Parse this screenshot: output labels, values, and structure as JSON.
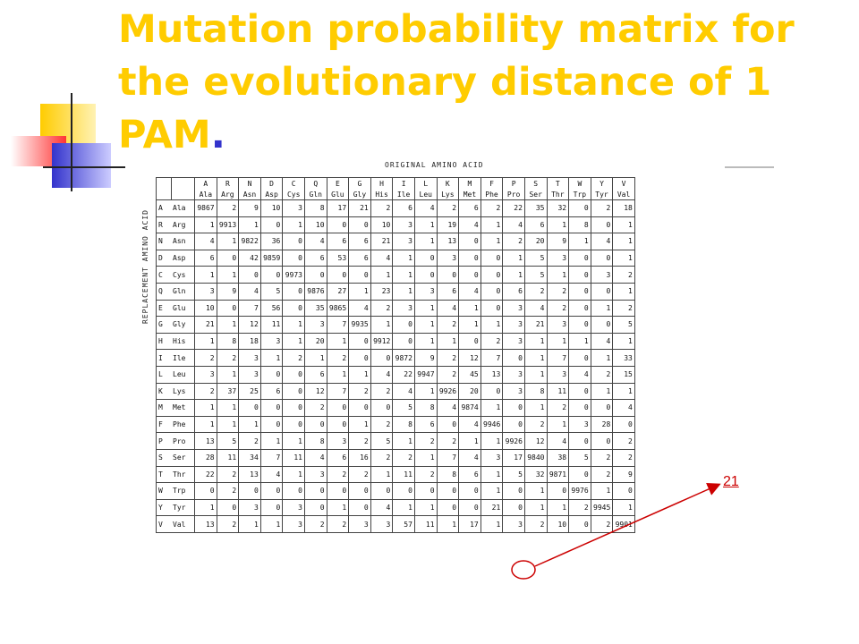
{
  "slide": {
    "title": "Mutation probability matrix for the evolutionary distance of 1 PAM",
    "title_dot": "."
  },
  "figure": {
    "header_caption": "ORIGINAL AMINO ACID",
    "side_caption": "REPLACEMENT AMINO ACID",
    "columns": [
      {
        "letter": "A",
        "abbr": "Ala"
      },
      {
        "letter": "R",
        "abbr": "Arg"
      },
      {
        "letter": "N",
        "abbr": "Asn"
      },
      {
        "letter": "D",
        "abbr": "Asp"
      },
      {
        "letter": "C",
        "abbr": "Cys"
      },
      {
        "letter": "Q",
        "abbr": "Gln"
      },
      {
        "letter": "E",
        "abbr": "Glu"
      },
      {
        "letter": "G",
        "abbr": "Gly"
      },
      {
        "letter": "H",
        "abbr": "His"
      },
      {
        "letter": "I",
        "abbr": "Ile"
      },
      {
        "letter": "L",
        "abbr": "Leu"
      },
      {
        "letter": "K",
        "abbr": "Lys"
      },
      {
        "letter": "M",
        "abbr": "Met"
      },
      {
        "letter": "F",
        "abbr": "Phe"
      },
      {
        "letter": "P",
        "abbr": "Pro"
      },
      {
        "letter": "S",
        "abbr": "Ser"
      },
      {
        "letter": "T",
        "abbr": "Thr"
      },
      {
        "letter": "W",
        "abbr": "Trp"
      },
      {
        "letter": "Y",
        "abbr": "Tyr"
      },
      {
        "letter": "V",
        "abbr": "Val"
      }
    ],
    "rows": [
      {
        "letter": "A",
        "abbr": "Ala",
        "values": [
          "9867",
          "2",
          "9",
          "10",
          "3",
          "8",
          "17",
          "21",
          "2",
          "6",
          "4",
          "2",
          "6",
          "2",
          "22",
          "35",
          "32",
          "0",
          "2",
          "18"
        ]
      },
      {
        "letter": "R",
        "abbr": "Arg",
        "values": [
          "1",
          "9913",
          "1",
          "0",
          "1",
          "10",
          "0",
          "0",
          "10",
          "3",
          "1",
          "19",
          "4",
          "1",
          "4",
          "6",
          "1",
          "8",
          "0",
          "1"
        ]
      },
      {
        "letter": "N",
        "abbr": "Asn",
        "values": [
          "4",
          "1",
          "9822",
          "36",
          "0",
          "4",
          "6",
          "6",
          "21",
          "3",
          "1",
          "13",
          "0",
          "1",
          "2",
          "20",
          "9",
          "1",
          "4",
          "1"
        ]
      },
      {
        "letter": "D",
        "abbr": "Asp",
        "values": [
          "6",
          "0",
          "42",
          "9859",
          "0",
          "6",
          "53",
          "6",
          "4",
          "1",
          "0",
          "3",
          "0",
          "0",
          "1",
          "5",
          "3",
          "0",
          "0",
          "1"
        ]
      },
      {
        "letter": "C",
        "abbr": "Cys",
        "values": [
          "1",
          "1",
          "0",
          "0",
          "9973",
          "0",
          "0",
          "0",
          "1",
          "1",
          "0",
          "0",
          "0",
          "0",
          "1",
          "5",
          "1",
          "0",
          "3",
          "2"
        ]
      },
      {
        "letter": "Q",
        "abbr": "Gln",
        "values": [
          "3",
          "9",
          "4",
          "5",
          "0",
          "9876",
          "27",
          "1",
          "23",
          "1",
          "3",
          "6",
          "4",
          "0",
          "6",
          "2",
          "2",
          "0",
          "0",
          "1"
        ]
      },
      {
        "letter": "E",
        "abbr": "Glu",
        "values": [
          "10",
          "0",
          "7",
          "56",
          "0",
          "35",
          "9865",
          "4",
          "2",
          "3",
          "1",
          "4",
          "1",
          "0",
          "3",
          "4",
          "2",
          "0",
          "1",
          "2"
        ]
      },
      {
        "letter": "G",
        "abbr": "Gly",
        "values": [
          "21",
          "1",
          "12",
          "11",
          "1",
          "3",
          "7",
          "9935",
          "1",
          "0",
          "1",
          "2",
          "1",
          "1",
          "3",
          "21",
          "3",
          "0",
          "0",
          "5"
        ]
      },
      {
        "letter": "H",
        "abbr": "His",
        "values": [
          "1",
          "8",
          "18",
          "3",
          "1",
          "20",
          "1",
          "0",
          "9912",
          "0",
          "1",
          "1",
          "0",
          "2",
          "3",
          "1",
          "1",
          "1",
          "4",
          "1"
        ]
      },
      {
        "letter": "I",
        "abbr": "Ile",
        "values": [
          "2",
          "2",
          "3",
          "1",
          "2",
          "1",
          "2",
          "0",
          "0",
          "9872",
          "9",
          "2",
          "12",
          "7",
          "0",
          "1",
          "7",
          "0",
          "1",
          "33"
        ]
      },
      {
        "letter": "L",
        "abbr": "Leu",
        "values": [
          "3",
          "1",
          "3",
          "0",
          "0",
          "6",
          "1",
          "1",
          "4",
          "22",
          "9947",
          "2",
          "45",
          "13",
          "3",
          "1",
          "3",
          "4",
          "2",
          "15"
        ]
      },
      {
        "letter": "K",
        "abbr": "Lys",
        "values": [
          "2",
          "37",
          "25",
          "6",
          "0",
          "12",
          "7",
          "2",
          "2",
          "4",
          "1",
          "9926",
          "20",
          "0",
          "3",
          "8",
          "11",
          "0",
          "1",
          "1"
        ]
      },
      {
        "letter": "M",
        "abbr": "Met",
        "values": [
          "1",
          "1",
          "0",
          "0",
          "0",
          "2",
          "0",
          "0",
          "0",
          "5",
          "8",
          "4",
          "9874",
          "1",
          "0",
          "1",
          "2",
          "0",
          "0",
          "4"
        ]
      },
      {
        "letter": "F",
        "abbr": "Phe",
        "values": [
          "1",
          "1",
          "1",
          "0",
          "0",
          "0",
          "0",
          "1",
          "2",
          "8",
          "6",
          "0",
          "4",
          "9946",
          "0",
          "2",
          "1",
          "3",
          "28",
          "0"
        ]
      },
      {
        "letter": "P",
        "abbr": "Pro",
        "values": [
          "13",
          "5",
          "2",
          "1",
          "1",
          "8",
          "3",
          "2",
          "5",
          "1",
          "2",
          "2",
          "1",
          "1",
          "9926",
          "12",
          "4",
          "0",
          "0",
          "2"
        ]
      },
      {
        "letter": "S",
        "abbr": "Ser",
        "values": [
          "28",
          "11",
          "34",
          "7",
          "11",
          "4",
          "6",
          "16",
          "2",
          "2",
          "1",
          "7",
          "4",
          "3",
          "17",
          "9840",
          "38",
          "5",
          "2",
          "2"
        ]
      },
      {
        "letter": "T",
        "abbr": "Thr",
        "values": [
          "22",
          "2",
          "13",
          "4",
          "1",
          "3",
          "2",
          "2",
          "1",
          "11",
          "2",
          "8",
          "6",
          "1",
          "5",
          "32",
          "9871",
          "0",
          "2",
          "9"
        ]
      },
      {
        "letter": "W",
        "abbr": "Trp",
        "values": [
          "0",
          "2",
          "0",
          "0",
          "0",
          "0",
          "0",
          "0",
          "0",
          "0",
          "0",
          "0",
          "0",
          "1",
          "0",
          "1",
          "0",
          "9976",
          "1",
          "0"
        ]
      },
      {
        "letter": "Y",
        "abbr": "Tyr",
        "values": [
          "1",
          "0",
          "3",
          "0",
          "3",
          "0",
          "1",
          "0",
          "4",
          "1",
          "1",
          "0",
          "0",
          "21",
          "0",
          "1",
          "1",
          "2",
          "9945",
          "1"
        ]
      },
      {
        "letter": "V",
        "abbr": "Val",
        "values": [
          "13",
          "2",
          "1",
          "1",
          "3",
          "2",
          "2",
          "3",
          "3",
          "57",
          "11",
          "1",
          "17",
          "1",
          "3",
          "2",
          "10",
          "0",
          "2",
          "9901"
        ]
      }
    ]
  },
  "callout": {
    "label": "21",
    "color": "#cc0000"
  },
  "colors": {
    "title": "#ffcc00",
    "title_dot": "#3333cc",
    "deco_yellow": "#ffcc00",
    "deco_red": "#ff3333",
    "deco_blue": "#3333cc"
  }
}
